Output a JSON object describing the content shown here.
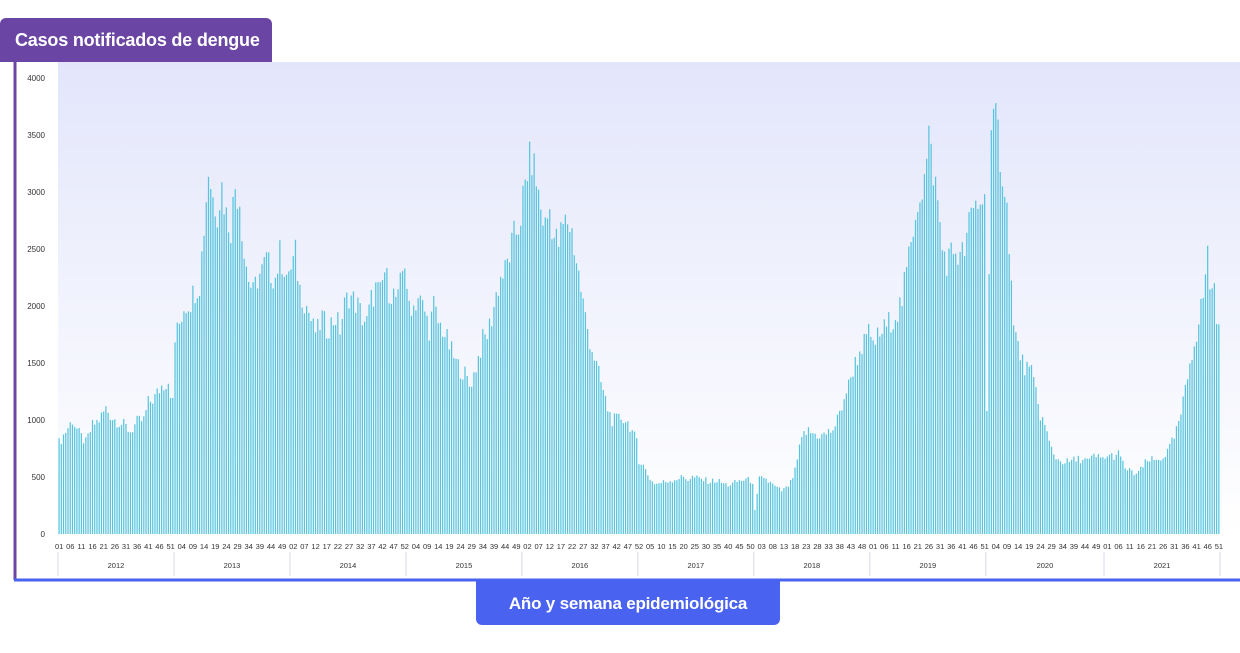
{
  "header": {
    "y_title": "Casos notificados de dengue"
  },
  "footer": {
    "x_title": "Año y semana epidemiológica"
  },
  "colors": {
    "bar": "#56c4dc",
    "y_tab": "#6a45a3",
    "x_tab": "#4a62f0",
    "axis": "#6a45a3",
    "bg_top": "#e3e6fb",
    "bg_bottom": "#ffffff"
  },
  "chart_data": {
    "type": "bar",
    "title": "Casos notificados de dengue",
    "xlabel": "Año y semana epidemiológica",
    "ylabel": "Casos notificados de dengue",
    "ylim": [
      0,
      4000
    ],
    "yticks": [
      0,
      500,
      1000,
      1500,
      2000,
      2500,
      3000,
      3500,
      4000
    ],
    "grid": false,
    "years": [
      {
        "label": "2012",
        "weeks": 52,
        "anchors": [
          [
            1,
            800
          ],
          [
            4,
            900
          ],
          [
            7,
            1000
          ],
          [
            10,
            880
          ],
          [
            13,
            800
          ],
          [
            16,
            950
          ],
          [
            19,
            1000
          ],
          [
            22,
            1100
          ],
          [
            25,
            1020
          ],
          [
            28,
            980
          ],
          [
            31,
            940
          ],
          [
            33,
            900
          ],
          [
            36,
            980
          ],
          [
            39,
            1000
          ],
          [
            41,
            1150
          ],
          [
            44,
            1200
          ],
          [
            47,
            1300
          ],
          [
            50,
            1350
          ],
          [
            52,
            1150
          ]
        ]
      },
      {
        "label": "2013",
        "weeks": 52,
        "anchors": [
          [
            1,
            1700
          ],
          [
            3,
            1850
          ],
          [
            5,
            2000
          ],
          [
            8,
            2050
          ],
          [
            10,
            2150
          ],
          [
            12,
            2200
          ],
          [
            14,
            2700
          ],
          [
            16,
            3200
          ],
          [
            18,
            2950
          ],
          [
            20,
            2850
          ],
          [
            22,
            3050
          ],
          [
            24,
            2800
          ],
          [
            26,
            2700
          ],
          [
            28,
            3050
          ],
          [
            30,
            2950
          ],
          [
            32,
            2450
          ],
          [
            34,
            2250
          ],
          [
            36,
            2100
          ],
          [
            38,
            2250
          ],
          [
            40,
            2300
          ],
          [
            42,
            2400
          ],
          [
            44,
            2300
          ],
          [
            46,
            2250
          ],
          [
            48,
            2450
          ],
          [
            50,
            2350
          ],
          [
            52,
            2200
          ]
        ]
      },
      {
        "label": "2014",
        "weeks": 52,
        "anchors": [
          [
            1,
            2300
          ],
          [
            3,
            2450
          ],
          [
            5,
            2150
          ],
          [
            7,
            2050
          ],
          [
            9,
            1950
          ],
          [
            11,
            1800
          ],
          [
            13,
            1780
          ],
          [
            15,
            1900
          ],
          [
            17,
            1800
          ],
          [
            19,
            1850
          ],
          [
            21,
            1900
          ],
          [
            23,
            1800
          ],
          [
            25,
            2000
          ],
          [
            27,
            2100
          ],
          [
            29,
            2050
          ],
          [
            31,
            2000
          ],
          [
            33,
            1900
          ],
          [
            35,
            1850
          ],
          [
            37,
            2050
          ],
          [
            39,
            2150
          ],
          [
            41,
            2100
          ],
          [
            43,
            2300
          ],
          [
            45,
            2150
          ],
          [
            47,
            2100
          ],
          [
            49,
            2050
          ],
          [
            51,
            2300
          ],
          [
            52,
            2400
          ]
        ]
      },
      {
        "label": "2015",
        "weeks": 52,
        "anchors": [
          [
            1,
            2050
          ],
          [
            4,
            2000
          ],
          [
            6,
            2080
          ],
          [
            9,
            1950
          ],
          [
            11,
            1800
          ],
          [
            13,
            2000
          ],
          [
            15,
            1850
          ],
          [
            17,
            1800
          ],
          [
            19,
            1700
          ],
          [
            21,
            1600
          ],
          [
            23,
            1500
          ],
          [
            25,
            1450
          ],
          [
            27,
            1400
          ],
          [
            29,
            1300
          ],
          [
            31,
            1400
          ],
          [
            33,
            1550
          ],
          [
            35,
            1700
          ],
          [
            37,
            1750
          ],
          [
            39,
            1900
          ],
          [
            41,
            2100
          ],
          [
            43,
            2250
          ],
          [
            45,
            2300
          ],
          [
            47,
            2450
          ],
          [
            49,
            2600
          ],
          [
            51,
            2700
          ],
          [
            52,
            2800
          ]
        ]
      },
      {
        "label": "2016",
        "weeks": 52,
        "anchors": [
          [
            1,
            2950
          ],
          [
            3,
            3200
          ],
          [
            5,
            3300
          ],
          [
            7,
            3100
          ],
          [
            9,
            2850
          ],
          [
            11,
            2700
          ],
          [
            13,
            2850
          ],
          [
            15,
            2600
          ],
          [
            17,
            2550
          ],
          [
            19,
            2700
          ],
          [
            21,
            2750
          ],
          [
            23,
            2650
          ],
          [
            25,
            2400
          ],
          [
            27,
            2150
          ],
          [
            29,
            1900
          ],
          [
            31,
            1700
          ],
          [
            33,
            1550
          ],
          [
            35,
            1400
          ],
          [
            37,
            1250
          ],
          [
            39,
            1100
          ],
          [
            41,
            1000
          ],
          [
            43,
            1000
          ],
          [
            45,
            1020
          ],
          [
            47,
            1000
          ],
          [
            49,
            950
          ],
          [
            51,
            850
          ],
          [
            52,
            800
          ]
        ]
      },
      {
        "label": "2017",
        "weeks": 52,
        "anchors": [
          [
            1,
            650
          ],
          [
            3,
            600
          ],
          [
            5,
            520
          ],
          [
            7,
            460
          ],
          [
            9,
            440
          ],
          [
            11,
            450
          ],
          [
            13,
            460
          ],
          [
            15,
            470
          ],
          [
            17,
            480
          ],
          [
            19,
            490
          ],
          [
            21,
            500
          ],
          [
            23,
            480
          ],
          [
            25,
            500
          ],
          [
            27,
            490
          ],
          [
            29,
            480
          ],
          [
            31,
            470
          ],
          [
            33,
            460
          ],
          [
            35,
            470
          ],
          [
            37,
            460
          ],
          [
            39,
            440
          ],
          [
            41,
            430
          ],
          [
            43,
            440
          ],
          [
            45,
            460
          ],
          [
            47,
            470
          ],
          [
            49,
            480
          ],
          [
            51,
            470
          ],
          [
            52,
            460
          ]
        ]
      },
      {
        "label": "2018",
        "weeks": 52,
        "anchors": [
          [
            1,
            200
          ],
          [
            3,
            480
          ],
          [
            5,
            500
          ],
          [
            7,
            460
          ],
          [
            9,
            430
          ],
          [
            11,
            400
          ],
          [
            13,
            380
          ],
          [
            15,
            400
          ],
          [
            17,
            450
          ],
          [
            19,
            550
          ],
          [
            21,
            750
          ],
          [
            23,
            880
          ],
          [
            25,
            900
          ],
          [
            27,
            880
          ],
          [
            29,
            870
          ],
          [
            31,
            860
          ],
          [
            33,
            880
          ],
          [
            35,
            900
          ],
          [
            37,
            950
          ],
          [
            39,
            1050
          ],
          [
            41,
            1200
          ],
          [
            43,
            1300
          ],
          [
            45,
            1450
          ],
          [
            47,
            1550
          ],
          [
            49,
            1650
          ],
          [
            51,
            1700
          ],
          [
            52,
            1750
          ]
        ]
      },
      {
        "label": "2019",
        "weeks": 52,
        "anchors": [
          [
            1,
            1650
          ],
          [
            3,
            1700
          ],
          [
            5,
            1750
          ],
          [
            7,
            1800
          ],
          [
            9,
            1850
          ],
          [
            11,
            1900
          ],
          [
            13,
            1950
          ],
          [
            15,
            2050
          ],
          [
            17,
            2300
          ],
          [
            19,
            2550
          ],
          [
            21,
            2850
          ],
          [
            23,
            3000
          ],
          [
            25,
            3100
          ],
          [
            27,
            3450
          ],
          [
            29,
            3200
          ],
          [
            31,
            2900
          ],
          [
            33,
            2500
          ],
          [
            35,
            2400
          ],
          [
            37,
            2450
          ],
          [
            39,
            2500
          ],
          [
            41,
            2400
          ],
          [
            43,
            2500
          ],
          [
            45,
            2700
          ],
          [
            47,
            2850
          ],
          [
            49,
            2900
          ],
          [
            51,
            2950
          ],
          [
            52,
            2900
          ]
        ]
      },
      {
        "label": "2020",
        "weeks": 53,
        "anchors": [
          [
            1,
            1100
          ],
          [
            3,
            3400
          ],
          [
            5,
            3650
          ],
          [
            7,
            3350
          ],
          [
            9,
            3050
          ],
          [
            11,
            2600
          ],
          [
            13,
            1800
          ],
          [
            15,
            1650
          ],
          [
            17,
            1500
          ],
          [
            19,
            1450
          ],
          [
            21,
            1400
          ],
          [
            23,
            1250
          ],
          [
            25,
            1050
          ],
          [
            27,
            950
          ],
          [
            29,
            800
          ],
          [
            31,
            700
          ],
          [
            33,
            650
          ],
          [
            35,
            640
          ],
          [
            37,
            630
          ],
          [
            39,
            640
          ],
          [
            41,
            650
          ],
          [
            43,
            660
          ],
          [
            45,
            650
          ],
          [
            47,
            640
          ],
          [
            49,
            680
          ],
          [
            51,
            670
          ],
          [
            53,
            660
          ]
        ]
      },
      {
        "label": "2021",
        "weeks": 52,
        "anchors": [
          [
            1,
            680
          ],
          [
            3,
            680
          ],
          [
            5,
            690
          ],
          [
            7,
            700
          ],
          [
            9,
            620
          ],
          [
            11,
            560
          ],
          [
            13,
            540
          ],
          [
            15,
            530
          ],
          [
            17,
            560
          ],
          [
            19,
            620
          ],
          [
            21,
            650
          ],
          [
            23,
            640
          ],
          [
            25,
            650
          ],
          [
            27,
            680
          ],
          [
            29,
            720
          ],
          [
            31,
            800
          ],
          [
            33,
            900
          ],
          [
            35,
            1050
          ],
          [
            37,
            1250
          ],
          [
            39,
            1500
          ],
          [
            41,
            1700
          ],
          [
            43,
            1850
          ],
          [
            45,
            2100
          ],
          [
            47,
            2450
          ],
          [
            48,
            2200
          ],
          [
            50,
            2150
          ],
          [
            52,
            1750
          ]
        ]
      }
    ],
    "tick_labels": [
      "01",
      "06",
      "11",
      "16",
      "21",
      "26",
      "31",
      "36",
      "41",
      "46",
      "51",
      "04",
      "09",
      "14",
      "19",
      "24",
      "29",
      "34",
      "39",
      "44",
      "49",
      "02",
      "07",
      "12",
      "17",
      "22",
      "27",
      "32",
      "37",
      "42",
      "47",
      "52",
      "04",
      "09",
      "14",
      "19",
      "24",
      "29",
      "34",
      "39",
      "44",
      "49",
      "02",
      "07",
      "12",
      "17",
      "22",
      "27",
      "32",
      "37",
      "42",
      "47",
      "52",
      "05",
      "10",
      "15",
      "20",
      "25",
      "30",
      "35",
      "40",
      "45",
      "50",
      "03",
      "08",
      "13",
      "18",
      "23",
      "28",
      "33",
      "38",
      "43",
      "48",
      "01",
      "06",
      "11",
      "16",
      "21",
      "26",
      "31",
      "36",
      "41",
      "46",
      "51",
      "04",
      "09",
      "14",
      "19",
      "24",
      "29",
      "34",
      "39",
      "44",
      "49",
      "01",
      "06",
      "11",
      "16",
      "21",
      "26",
      "31",
      "36",
      "41",
      "46",
      "51"
    ]
  }
}
